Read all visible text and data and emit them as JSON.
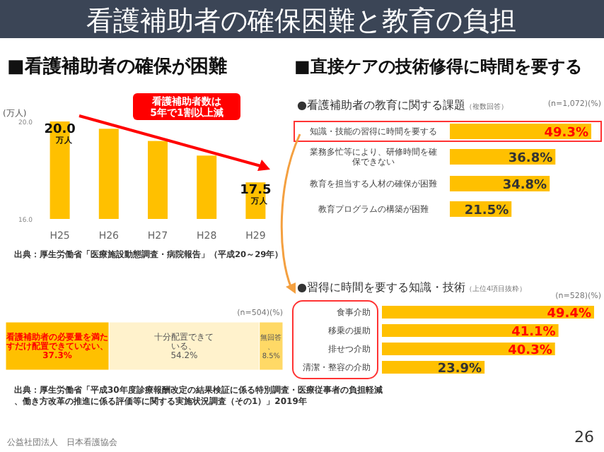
{
  "chart_data": [
    {
      "type": "other",
      "title": "看護補助者の確保困難と教育の負担",
      "annotations": [
        "■直接ケアの技術修得に時間を要する",
        "公益社団法人　日本看護協会",
        "26"
      ]
    },
    {
      "type": "bar",
      "title": "■看護補助者の確保が困難",
      "ylabel": "(万人)",
      "categories": [
        "H25",
        "H26",
        "H27",
        "H28",
        "H29"
      ],
      "values": [
        20.0,
        19.7,
        19.2,
        18.6,
        17.5
      ],
      "color": "#ffc000",
      "ylim": [
        16,
        20
      ],
      "yticks": [
        {
          "value": 16,
          "label": "16.0"
        },
        {
          "value": 20,
          "label": "20.0"
        }
      ],
      "value_labels": [
        "20.0\n万人",
        null,
        null,
        null,
        "17.5\n万人"
      ],
      "annotations": [
        "看護補助者数は\n5年で1割以上減",
        "出典：厚生労働省「医療施設動態調査・病院報告」（平成20～29年）"
      ]
    },
    {
      "type": "bar",
      "orientation": "horizontal",
      "title": "●看護補助者の教育に関する課題",
      "subtitle": "（複数回答）",
      "annotations": [
        "(n=1,072)(%)"
      ],
      "categories": [
        "知識・技能の習得に時間を要する",
        "業務多忙等により、研修時間を確保できない",
        "教育を担当する人材の確保が困難",
        "教育プログラムの構築が困難"
      ],
      "values": [
        49.3,
        36.8,
        34.8,
        21.5
      ],
      "color": "#ffc000",
      "value_labels": [
        "49.3%",
        "36.8%",
        "34.8%",
        "21.5%"
      ]
    },
    {
      "type": "bar",
      "orientation": "horizontal",
      "stacked": true,
      "categories": [
        null
      ],
      "annotations": [
        "(n=504)(%)",
        "出典：厚生労働省「平成30年度診療報酬改定の結果検証に係る特別調査・医療従事者の負担軽減、働き方改革の推進に係る評価等に関する実施状況調査（その1）」2019年"
      ],
      "series": [
        {
          "name": "看護補助者の必要量を満たすだけ配置できていない、",
          "color": "#ffc000",
          "values": [
            37.3
          ],
          "value_labels": [
            "37.3%"
          ]
        },
        {
          "name": "十分配置できている、",
          "color": "#fff2cc",
          "values": [
            54.2
          ],
          "value_labels": [
            "54.2%"
          ]
        },
        {
          "name": "無回答、",
          "color": "#ffd966",
          "values": [
            8.5
          ],
          "value_labels": [
            "8.5%"
          ]
        }
      ]
    },
    {
      "type": "bar",
      "orientation": "horizontal",
      "title": "●習得に時間を要する知識・技術",
      "subtitle": "（上位4項目抜粋）",
      "annotations": [
        "(n=528)(%)"
      ],
      "categories": [
        "食事介助",
        "移乗の援助",
        "排せつ介助",
        "清潔・整容の介助"
      ],
      "values": [
        49.4,
        41.1,
        40.3,
        23.9
      ],
      "color": "#ffc000",
      "value_labels": [
        "49.4%",
        "41.1%",
        "40.3%",
        "23.9%"
      ]
    }
  ]
}
